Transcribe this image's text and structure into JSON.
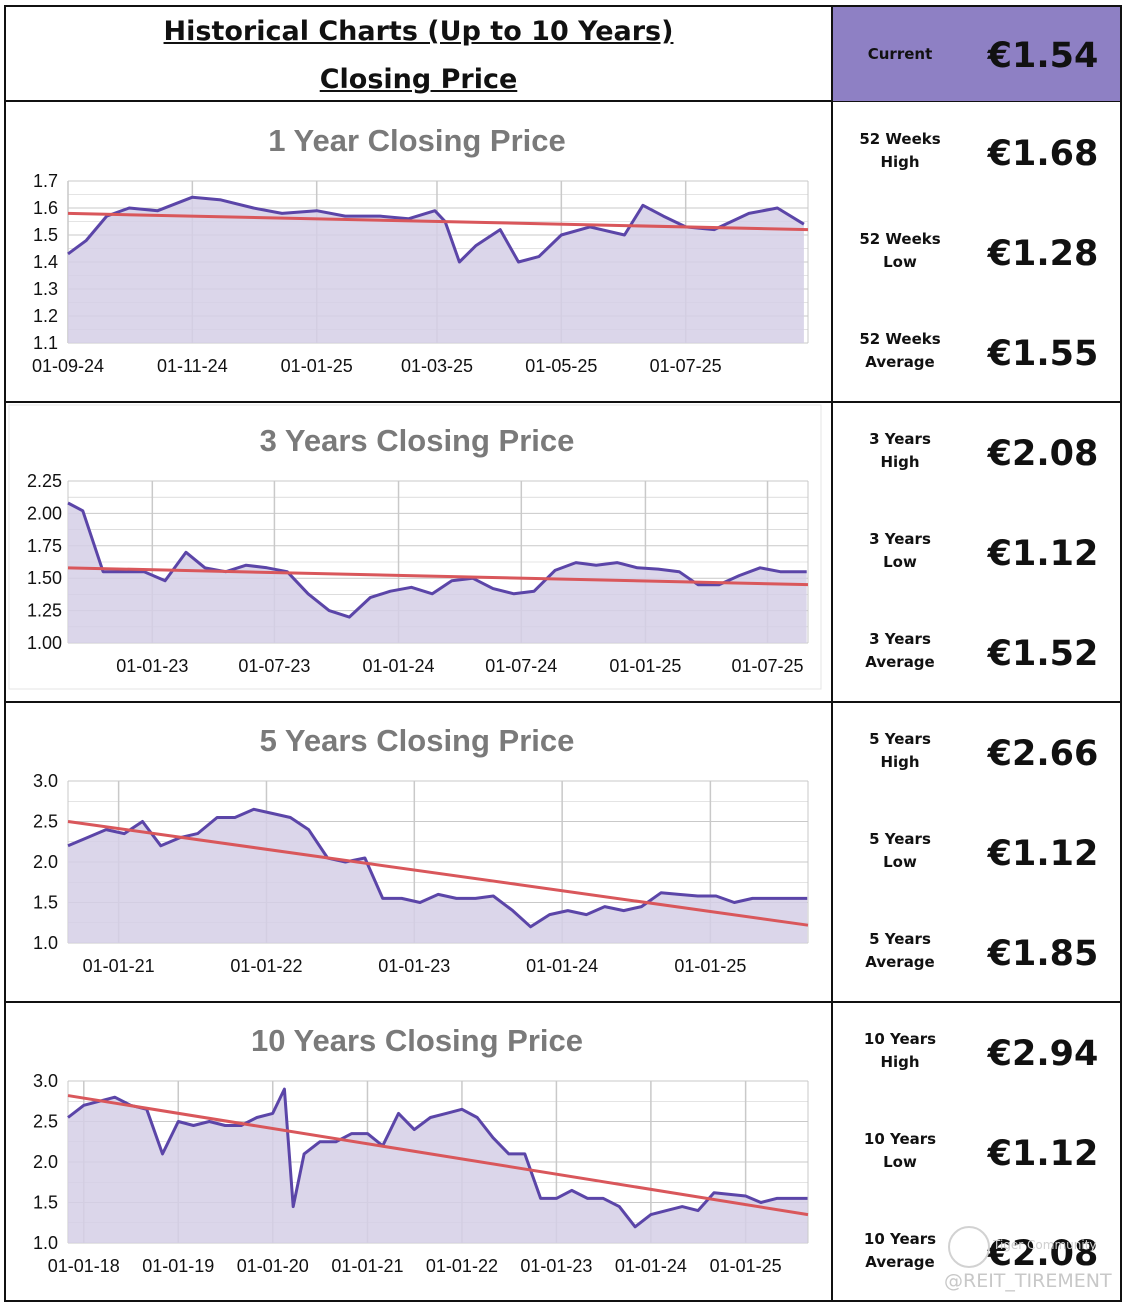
{
  "header": {
    "title": "Historical Charts (Up to 10 Years)",
    "subtitle": "Closing Price",
    "current_label": "Current",
    "current_value": "€1.54"
  },
  "stats": [
    {
      "label1": "52 Weeks",
      "label2": "High",
      "value": "€1.68"
    },
    {
      "label1": "52 Weeks",
      "label2": "Low",
      "value": "€1.28"
    },
    {
      "label1": "52 Weeks",
      "label2": "Average",
      "value": "€1.55"
    },
    {
      "label1": "3 Years",
      "label2": "High",
      "value": "€2.08"
    },
    {
      "label1": "3 Years",
      "label2": "Low",
      "value": "€1.12"
    },
    {
      "label1": "3 Years",
      "label2": "Average",
      "value": "€1.52"
    },
    {
      "label1": "5 Years",
      "label2": "High",
      "value": "€2.66"
    },
    {
      "label1": "5 Years",
      "label2": "Low",
      "value": "€1.12"
    },
    {
      "label1": "5 Years",
      "label2": "Average",
      "value": "€1.85"
    },
    {
      "label1": "10 Years",
      "label2": "High",
      "value": "€2.94"
    },
    {
      "label1": "10 Years",
      "label2": "Low",
      "value": "€1.12"
    },
    {
      "label1": "10 Years",
      "label2": "Average",
      "value": "€2.08"
    }
  ],
  "watermark": {
    "community": "Tiger Community",
    "handle": "@REIT_TIREMENT"
  },
  "colors": {
    "line": "#5b45a8",
    "fill": "#d5cfe6",
    "trend": "#d9575b",
    "current_bg": "#8e80c4",
    "title_gray": "#7a7a7a",
    "grid": "#c9c9c9"
  },
  "chart_data": [
    {
      "type": "area",
      "title": "1 Year Closing Price",
      "x_dates": [
        "2024-09-01",
        "2024-09-10",
        "2024-09-20",
        "2024-10-01",
        "2024-10-15",
        "2024-11-01",
        "2024-11-15",
        "2024-12-01",
        "2024-12-15",
        "2025-01-01",
        "2025-01-15",
        "2025-02-01",
        "2025-02-15",
        "2025-02-28",
        "2025-03-05",
        "2025-03-12",
        "2025-03-20",
        "2025-04-01",
        "2025-04-10",
        "2025-04-20",
        "2025-05-01",
        "2025-05-15",
        "2025-06-01",
        "2025-06-10",
        "2025-06-20",
        "2025-07-01",
        "2025-07-15",
        "2025-08-01",
        "2025-08-15",
        "2025-08-28"
      ],
      "values": [
        1.43,
        1.48,
        1.57,
        1.6,
        1.59,
        1.64,
        1.63,
        1.6,
        1.58,
        1.59,
        1.57,
        1.57,
        1.56,
        1.59,
        1.55,
        1.4,
        1.46,
        1.52,
        1.4,
        1.42,
        1.5,
        1.53,
        1.5,
        1.61,
        1.57,
        1.53,
        1.52,
        1.58,
        1.6,
        1.54
      ],
      "trend": [
        1.58,
        1.52
      ],
      "xticks": [
        "01-09-24",
        "01-11-24",
        "01-01-25",
        "01-03-25",
        "01-05-25",
        "01-07-25"
      ],
      "xtick_dates": [
        "2024-09-01",
        "2024-11-01",
        "2025-01-01",
        "2025-03-01",
        "2025-05-01",
        "2025-07-01"
      ],
      "x_range": [
        "2024-09-01",
        "2025-08-30"
      ],
      "ylim": [
        1.1,
        1.7
      ],
      "yticks": [
        "1.1",
        "1.2",
        "1.3",
        "1.4",
        "1.5",
        "1.6",
        "1.7"
      ],
      "grid": true
    },
    {
      "type": "area",
      "title": "3 Years Closing Price",
      "x_dates": [
        "2022-08-29",
        "2022-09-20",
        "2022-10-20",
        "2022-11-20",
        "2022-12-20",
        "2023-01-20",
        "2023-02-20",
        "2023-03-20",
        "2023-04-20",
        "2023-05-20",
        "2023-06-20",
        "2023-07-20",
        "2023-08-20",
        "2023-09-20",
        "2023-10-20",
        "2023-11-20",
        "2023-12-20",
        "2024-01-20",
        "2024-02-20",
        "2024-03-20",
        "2024-04-20",
        "2024-05-20",
        "2024-06-20",
        "2024-07-20",
        "2024-08-20",
        "2024-09-20",
        "2024-10-20",
        "2024-11-20",
        "2024-12-20",
        "2025-01-20",
        "2025-02-20",
        "2025-03-20",
        "2025-04-20",
        "2025-05-20",
        "2025-06-20",
        "2025-07-20",
        "2025-08-28"
      ],
      "values": [
        2.08,
        2.02,
        1.55,
        1.55,
        1.55,
        1.48,
        1.7,
        1.58,
        1.55,
        1.6,
        1.58,
        1.55,
        1.38,
        1.25,
        1.2,
        1.35,
        1.4,
        1.43,
        1.38,
        1.48,
        1.5,
        1.42,
        1.38,
        1.4,
        1.56,
        1.62,
        1.6,
        1.62,
        1.58,
        1.57,
        1.55,
        1.45,
        1.45,
        1.52,
        1.58,
        1.55,
        1.55
      ],
      "trend": [
        1.58,
        1.45
      ],
      "xticks": [
        "01-01-23",
        "01-07-23",
        "01-01-24",
        "01-07-24",
        "01-01-25",
        "01-07-25"
      ],
      "xtick_dates": [
        "2023-01-01",
        "2023-07-01",
        "2024-01-01",
        "2024-07-01",
        "2025-01-01",
        "2025-07-01"
      ],
      "x_range": [
        "2022-08-29",
        "2025-08-30"
      ],
      "ylim": [
        1.0,
        2.25
      ],
      "yticks": [
        "1.00",
        "1.25",
        "1.50",
        "1.75",
        "2.00",
        "2.25"
      ],
      "grid": true
    },
    {
      "type": "area",
      "title": "5 Years Closing Price",
      "x_dates": [
        "2020-08-29",
        "2020-10-15",
        "2020-12-01",
        "2021-01-15",
        "2021-03-01",
        "2021-04-15",
        "2021-06-01",
        "2021-07-15",
        "2021-09-01",
        "2021-10-15",
        "2021-12-01",
        "2022-01-15",
        "2022-03-01",
        "2022-04-15",
        "2022-06-01",
        "2022-07-15",
        "2022-09-01",
        "2022-10-15",
        "2022-12-01",
        "2023-01-15",
        "2023-03-01",
        "2023-04-15",
        "2023-06-01",
        "2023-07-15",
        "2023-09-01",
        "2023-10-15",
        "2023-12-01",
        "2024-01-15",
        "2024-03-01",
        "2024-04-15",
        "2024-06-01",
        "2024-07-15",
        "2024-09-01",
        "2024-10-15",
        "2024-12-01",
        "2025-01-15",
        "2025-03-01",
        "2025-04-15",
        "2025-06-01",
        "2025-08-28"
      ],
      "values": [
        2.2,
        2.3,
        2.4,
        2.35,
        2.5,
        2.2,
        2.3,
        2.35,
        2.55,
        2.55,
        2.65,
        2.6,
        2.55,
        2.4,
        2.05,
        2.0,
        2.05,
        1.55,
        1.55,
        1.5,
        1.6,
        1.55,
        1.55,
        1.58,
        1.4,
        1.2,
        1.35,
        1.4,
        1.35,
        1.45,
        1.4,
        1.45,
        1.62,
        1.6,
        1.58,
        1.58,
        1.5,
        1.55,
        1.55,
        1.55
      ],
      "trend": [
        2.5,
        1.22
      ],
      "xticks": [
        "01-01-21",
        "01-01-22",
        "01-01-23",
        "01-01-24",
        "01-01-25"
      ],
      "xtick_dates": [
        "2021-01-01",
        "2022-01-01",
        "2023-01-01",
        "2024-01-01",
        "2025-01-01"
      ],
      "x_range": [
        "2020-08-29",
        "2025-08-30"
      ],
      "ylim": [
        1.0,
        3.0
      ],
      "yticks": [
        "1.0",
        "1.5",
        "2.0",
        "2.5",
        "3.0"
      ],
      "grid": true
    },
    {
      "type": "area",
      "title": "10 Years Closing Price",
      "x_dates": [
        "2017-11-01",
        "2018-01-01",
        "2018-03-01",
        "2018-05-01",
        "2018-07-01",
        "2018-09-01",
        "2018-11-01",
        "2019-01-01",
        "2019-03-01",
        "2019-05-01",
        "2019-07-01",
        "2019-09-01",
        "2019-11-01",
        "2020-01-01",
        "2020-02-15",
        "2020-03-20",
        "2020-05-01",
        "2020-07-01",
        "2020-09-01",
        "2020-11-01",
        "2021-01-01",
        "2021-03-01",
        "2021-05-01",
        "2021-07-01",
        "2021-09-01",
        "2021-11-01",
        "2022-01-01",
        "2022-03-01",
        "2022-05-01",
        "2022-07-01",
        "2022-09-01",
        "2022-11-01",
        "2023-01-01",
        "2023-03-01",
        "2023-05-01",
        "2023-07-01",
        "2023-09-01",
        "2023-11-01",
        "2024-01-01",
        "2024-03-01",
        "2024-05-01",
        "2024-07-01",
        "2024-09-01",
        "2024-11-01",
        "2025-01-01",
        "2025-03-01",
        "2025-05-01",
        "2025-08-28"
      ],
      "values": [
        2.55,
        2.7,
        2.75,
        2.8,
        2.7,
        2.65,
        2.1,
        2.5,
        2.45,
        2.5,
        2.45,
        2.45,
        2.55,
        2.6,
        2.9,
        1.45,
        2.1,
        2.25,
        2.25,
        2.35,
        2.35,
        2.2,
        2.6,
        2.4,
        2.55,
        2.6,
        2.65,
        2.55,
        2.3,
        2.1,
        2.1,
        1.55,
        1.55,
        1.65,
        1.55,
        1.55,
        1.45,
        1.2,
        1.35,
        1.4,
        1.45,
        1.4,
        1.62,
        1.6,
        1.58,
        1.5,
        1.55,
        1.55
      ],
      "trend": [
        2.82,
        1.35
      ],
      "xticks": [
        "01-01-18",
        "01-01-19",
        "01-01-20",
        "01-01-21",
        "01-01-22",
        "01-01-23",
        "01-01-24",
        "01-01-25"
      ],
      "xtick_dates": [
        "2018-01-01",
        "2019-01-01",
        "2020-01-01",
        "2021-01-01",
        "2022-01-01",
        "2023-01-01",
        "2024-01-01",
        "2025-01-01"
      ],
      "x_range": [
        "2017-11-01",
        "2025-08-30"
      ],
      "ylim": [
        1.0,
        3.0
      ],
      "yticks": [
        "1.0",
        "1.5",
        "2.0",
        "2.5",
        "3.0"
      ],
      "grid": true
    }
  ]
}
